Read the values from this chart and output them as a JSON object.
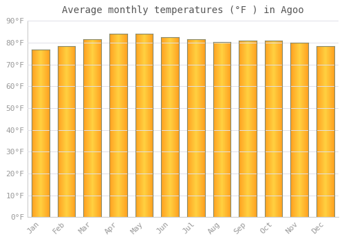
{
  "title": "Average monthly temperatures (°F ) in Agoo",
  "months": [
    "Jan",
    "Feb",
    "Mar",
    "Apr",
    "May",
    "Jun",
    "Jul",
    "Aug",
    "Sep",
    "Oct",
    "Nov",
    "Dec"
  ],
  "values": [
    77.0,
    78.5,
    81.5,
    84.0,
    84.0,
    82.5,
    81.5,
    80.5,
    81.0,
    81.0,
    80.0,
    78.5
  ],
  "bar_color_edge": "#FFA020",
  "bar_color_center": "#FFD040",
  "bar_border_color": "#888866",
  "background_color": "#FFFFFF",
  "plot_bg_color": "#FFFFFF",
  "grid_color": "#E0E0E8",
  "ytick_labels": [
    "0°F",
    "10°F",
    "20°F",
    "30°F",
    "40°F",
    "50°F",
    "60°F",
    "70°F",
    "80°F",
    "90°F"
  ],
  "ytick_values": [
    0,
    10,
    20,
    30,
    40,
    50,
    60,
    70,
    80,
    90
  ],
  "ylim": [
    0,
    90
  ],
  "title_fontsize": 10,
  "tick_fontsize": 8,
  "font_color": "#999999",
  "title_color": "#555555"
}
